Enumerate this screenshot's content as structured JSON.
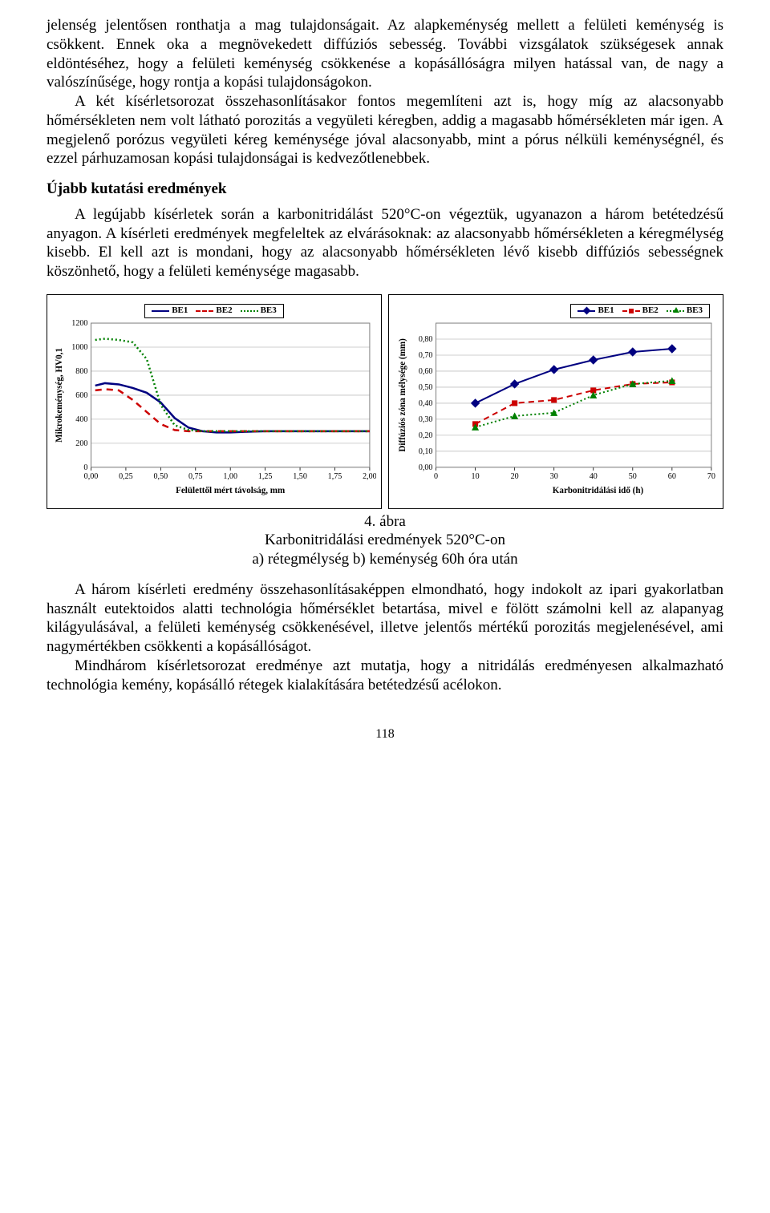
{
  "paragraphs": {
    "p1": "jelenség jelentősen ronthatja a mag tulajdonságait. Az alapkeménység mellett a felületi keménység is csökkent. Ennek oka a megnövekedett diffúziós sebesség. További vizsgálatok szükségesek annak eldöntéséhez, hogy a felületi keménység csökkenése a kopásállóságra milyen hatással van, de nagy a valószínűsége, hogy rontja a kopási tulajdonságokon.",
    "p2": "A két kísérletsorozat összehasonlításakor fontos megemlíteni azt is, hogy míg az alacsonyabb hőmérsékleten nem volt látható porozitás a vegyületi kéregben, addig a magasabb hőmérsékleten már igen. A megjelenő porózus vegyületi kéreg keménysége jóval alacsonyabb, mint a pórus nélküli keménységnél, és ezzel párhuzamosan kopási tulajdonságai is kedvezőtlenebbek.",
    "h1": "Újabb kutatási eredmények",
    "p3": "A legújabb kísérletek során a karbonitridálást 520°C-on végeztük, ugyanazon a három betétedzésű anyagon. A kísérleti eredmények megfeleltek az elvárásoknak: az alacsonyabb hőmérsékleten a kéregmélység kisebb. El kell azt is mondani, hogy az alacsonyabb hőmérsékleten lévő kisebb diffúziós sebességnek köszönhető, hogy a felületi keménysége magasabb.",
    "cap1": "4. ábra",
    "cap2": "Karbonitridálási eredmények 520°C-on",
    "cap3": "a) rétegmélység b) keménység 60h óra után",
    "p4": "A három kísérleti eredmény összehasonlításaképpen elmondható, hogy indokolt az ipari gyakorlatban használt eutektoidos alatti technológia hőmérséklet betartása, mivel e fölött számolni kell az alapanyag kilágyulásával, a felületi keménység csökkenésével, illetve jelentős mértékű porozitás megjelenésével, ami nagymértékben csökkenti a kopásállóságot.",
    "p5": "Mindhárom kísérletsorozat eredménye azt mutatja, hogy a nitridálás eredményesen alkalmazható technológia kemény, kopásálló rétegek kialakítására betétedzésű acélokon.",
    "pagenum": "118"
  },
  "chartA": {
    "type": "line",
    "title": "",
    "xlabel": "Felülettől mért távolság, mm",
    "ylabel": "Mikrokeménység, HV0,1",
    "xlim": [
      0,
      2.0
    ],
    "ylim": [
      0,
      1200
    ],
    "xticks": [
      "0,00",
      "0,25",
      "0,50",
      "0,75",
      "1,00",
      "1,25",
      "1,50",
      "1,75",
      "2,00"
    ],
    "yticks": [
      0,
      200,
      400,
      600,
      800,
      1000,
      1200
    ],
    "label_fontsize": 11,
    "tick_fontsize": 10,
    "grid_color": "#bfbfbf",
    "background_color": "#ffffff",
    "legend_labels": [
      "BE1",
      "BE2",
      "BE3"
    ],
    "series": {
      "BE1": {
        "color": "#000080",
        "dash": "solid",
        "width": 2.5,
        "x": [
          0.03,
          0.1,
          0.2,
          0.3,
          0.4,
          0.5,
          0.6,
          0.7,
          0.8,
          0.9,
          1.0,
          1.1,
          1.25,
          1.5,
          1.75,
          2.0
        ],
        "y": [
          680,
          700,
          690,
          660,
          620,
          540,
          410,
          330,
          300,
          290,
          290,
          295,
          300,
          300,
          300,
          300
        ]
      },
      "BE2": {
        "color": "#cc0000",
        "dash": "8,6",
        "width": 2.5,
        "x": [
          0.03,
          0.1,
          0.2,
          0.3,
          0.4,
          0.5,
          0.6,
          0.7,
          0.8,
          0.9,
          1.0,
          1.25,
          1.5,
          1.75,
          2.0
        ],
        "y": [
          640,
          650,
          640,
          560,
          460,
          360,
          310,
          300,
          300,
          300,
          300,
          300,
          300,
          300,
          300
        ]
      },
      "BE3": {
        "color": "#008000",
        "dash": "2,3",
        "width": 2.5,
        "x": [
          0.03,
          0.1,
          0.2,
          0.3,
          0.4,
          0.5,
          0.6,
          0.7,
          0.8,
          0.9,
          1.0,
          1.25,
          1.5,
          1.75,
          2.0
        ],
        "y": [
          1060,
          1070,
          1060,
          1040,
          900,
          520,
          350,
          310,
          300,
          300,
          300,
          300,
          300,
          300,
          300
        ]
      }
    }
  },
  "chartB": {
    "type": "line-marker",
    "xlabel": "Karbonitridálási idő (h)",
    "ylabel": "Diffúziós zóna mélysége (mm)",
    "xlim": [
      0,
      70
    ],
    "ylim": [
      0,
      0.9
    ],
    "xticks": [
      0,
      10,
      20,
      30,
      40,
      50,
      60,
      70
    ],
    "yticks": [
      "0,00",
      "0,10",
      "0,20",
      "0,30",
      "0,40",
      "0,50",
      "0,60",
      "0,70",
      "0,80"
    ],
    "ytick_vals": [
      0,
      0.1,
      0.2,
      0.3,
      0.4,
      0.5,
      0.6,
      0.7,
      0.8
    ],
    "label_fontsize": 11,
    "tick_fontsize": 10,
    "grid_color": "#bfbfbf",
    "background_color": "#ffffff",
    "legend_labels": [
      "BE1",
      "BE2",
      "BE3"
    ],
    "series": {
      "BE1": {
        "color": "#000080",
        "dash": "solid",
        "width": 2,
        "marker": "diamond",
        "marker_fill": "#000080",
        "x": [
          10,
          20,
          30,
          40,
          50,
          60
        ],
        "y": [
          0.4,
          0.52,
          0.61,
          0.67,
          0.72,
          0.74
        ]
      },
      "BE2": {
        "color": "#cc0000",
        "dash": "7,5",
        "width": 2,
        "marker": "square",
        "marker_fill": "#cc0000",
        "x": [
          10,
          20,
          30,
          40,
          50,
          60
        ],
        "y": [
          0.27,
          0.4,
          0.42,
          0.48,
          0.52,
          0.53
        ]
      },
      "BE3": {
        "color": "#008000",
        "dash": "2,3",
        "width": 2,
        "marker": "triangle",
        "marker_fill": "#008000",
        "x": [
          10,
          20,
          30,
          40,
          50,
          60
        ],
        "y": [
          0.25,
          0.32,
          0.34,
          0.45,
          0.52,
          0.54
        ]
      }
    }
  }
}
